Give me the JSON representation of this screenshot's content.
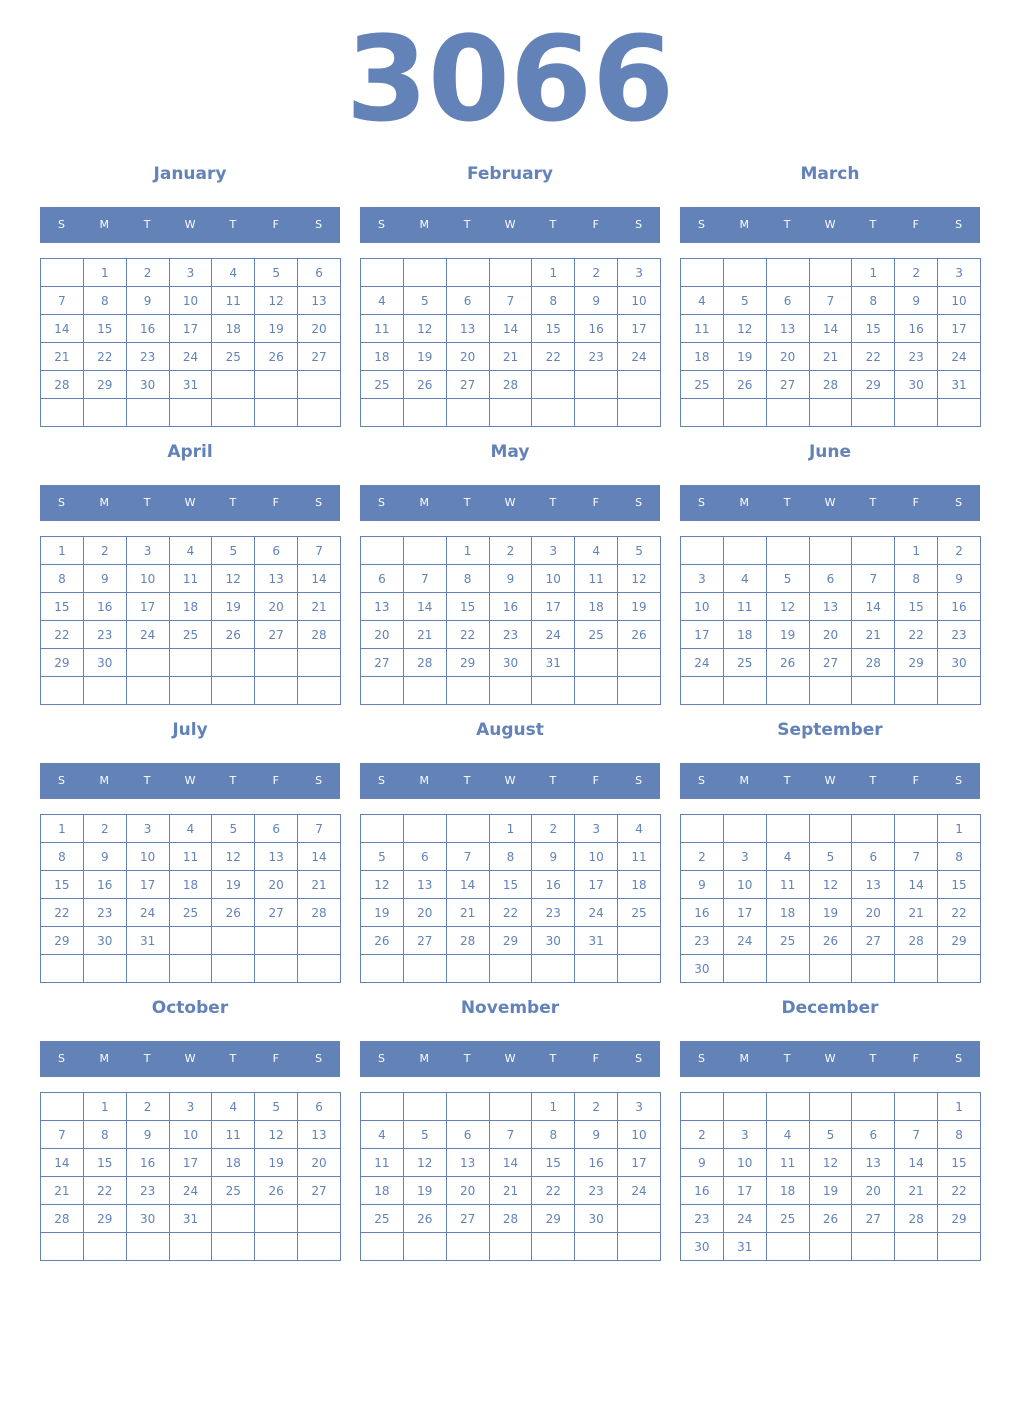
{
  "year": "3066",
  "accent_color": "#6282b8",
  "weekdays": [
    "S",
    "M",
    "T",
    "W",
    "T",
    "F",
    "S"
  ],
  "months": [
    {
      "name": "January",
      "weeks": [
        [
          "",
          "1",
          "2",
          "3",
          "4",
          "5",
          "6"
        ],
        [
          "7",
          "8",
          "9",
          "10",
          "11",
          "12",
          "13"
        ],
        [
          "14",
          "15",
          "16",
          "17",
          "18",
          "19",
          "20"
        ],
        [
          "21",
          "22",
          "23",
          "24",
          "25",
          "26",
          "27"
        ],
        [
          "28",
          "29",
          "30",
          "31",
          "",
          "",
          ""
        ],
        [
          "",
          "",
          "",
          "",
          "",
          "",
          ""
        ]
      ]
    },
    {
      "name": "February",
      "weeks": [
        [
          "",
          "",
          "",
          "",
          "1",
          "2",
          "3"
        ],
        [
          "4",
          "5",
          "6",
          "7",
          "8",
          "9",
          "10"
        ],
        [
          "11",
          "12",
          "13",
          "14",
          "15",
          "16",
          "17"
        ],
        [
          "18",
          "19",
          "20",
          "21",
          "22",
          "23",
          "24"
        ],
        [
          "25",
          "26",
          "27",
          "28",
          "",
          "",
          ""
        ],
        [
          "",
          "",
          "",
          "",
          "",
          "",
          ""
        ]
      ]
    },
    {
      "name": "March",
      "weeks": [
        [
          "",
          "",
          "",
          "",
          "1",
          "2",
          "3"
        ],
        [
          "4",
          "5",
          "6",
          "7",
          "8",
          "9",
          "10"
        ],
        [
          "11",
          "12",
          "13",
          "14",
          "15",
          "16",
          "17"
        ],
        [
          "18",
          "19",
          "20",
          "21",
          "22",
          "23",
          "24"
        ],
        [
          "25",
          "26",
          "27",
          "28",
          "29",
          "30",
          "31"
        ],
        [
          "",
          "",
          "",
          "",
          "",
          "",
          ""
        ]
      ]
    },
    {
      "name": "April",
      "weeks": [
        [
          "1",
          "2",
          "3",
          "4",
          "5",
          "6",
          "7"
        ],
        [
          "8",
          "9",
          "10",
          "11",
          "12",
          "13",
          "14"
        ],
        [
          "15",
          "16",
          "17",
          "18",
          "19",
          "20",
          "21"
        ],
        [
          "22",
          "23",
          "24",
          "25",
          "26",
          "27",
          "28"
        ],
        [
          "29",
          "30",
          "",
          "",
          "",
          "",
          ""
        ],
        [
          "",
          "",
          "",
          "",
          "",
          "",
          ""
        ]
      ]
    },
    {
      "name": "May",
      "weeks": [
        [
          "",
          "",
          "1",
          "2",
          "3",
          "4",
          "5"
        ],
        [
          "6",
          "7",
          "8",
          "9",
          "10",
          "11",
          "12"
        ],
        [
          "13",
          "14",
          "15",
          "16",
          "17",
          "18",
          "19"
        ],
        [
          "20",
          "21",
          "22",
          "23",
          "24",
          "25",
          "26"
        ],
        [
          "27",
          "28",
          "29",
          "30",
          "31",
          "",
          ""
        ],
        [
          "",
          "",
          "",
          "",
          "",
          "",
          ""
        ]
      ]
    },
    {
      "name": "June",
      "weeks": [
        [
          "",
          "",
          "",
          "",
          "",
          "1",
          "2"
        ],
        [
          "3",
          "4",
          "5",
          "6",
          "7",
          "8",
          "9"
        ],
        [
          "10",
          "11",
          "12",
          "13",
          "14",
          "15",
          "16"
        ],
        [
          "17",
          "18",
          "19",
          "20",
          "21",
          "22",
          "23"
        ],
        [
          "24",
          "25",
          "26",
          "27",
          "28",
          "29",
          "30"
        ],
        [
          "",
          "",
          "",
          "",
          "",
          "",
          ""
        ]
      ]
    },
    {
      "name": "July",
      "weeks": [
        [
          "1",
          "2",
          "3",
          "4",
          "5",
          "6",
          "7"
        ],
        [
          "8",
          "9",
          "10",
          "11",
          "12",
          "13",
          "14"
        ],
        [
          "15",
          "16",
          "17",
          "18",
          "19",
          "20",
          "21"
        ],
        [
          "22",
          "23",
          "24",
          "25",
          "26",
          "27",
          "28"
        ],
        [
          "29",
          "30",
          "31",
          "",
          "",
          "",
          ""
        ],
        [
          "",
          "",
          "",
          "",
          "",
          "",
          ""
        ]
      ]
    },
    {
      "name": "August",
      "weeks": [
        [
          "",
          "",
          "",
          "1",
          "2",
          "3",
          "4"
        ],
        [
          "5",
          "6",
          "7",
          "8",
          "9",
          "10",
          "11"
        ],
        [
          "12",
          "13",
          "14",
          "15",
          "16",
          "17",
          "18"
        ],
        [
          "19",
          "20",
          "21",
          "22",
          "23",
          "24",
          "25"
        ],
        [
          "26",
          "27",
          "28",
          "29",
          "30",
          "31",
          ""
        ],
        [
          "",
          "",
          "",
          "",
          "",
          "",
          ""
        ]
      ]
    },
    {
      "name": "September",
      "weeks": [
        [
          "",
          "",
          "",
          "",
          "",
          "",
          "1"
        ],
        [
          "2",
          "3",
          "4",
          "5",
          "6",
          "7",
          "8"
        ],
        [
          "9",
          "10",
          "11",
          "12",
          "13",
          "14",
          "15"
        ],
        [
          "16",
          "17",
          "18",
          "19",
          "20",
          "21",
          "22"
        ],
        [
          "23",
          "24",
          "25",
          "26",
          "27",
          "28",
          "29"
        ],
        [
          "30",
          "",
          "",
          "",
          "",
          "",
          ""
        ]
      ]
    },
    {
      "name": "October",
      "weeks": [
        [
          "",
          "1",
          "2",
          "3",
          "4",
          "5",
          "6"
        ],
        [
          "7",
          "8",
          "9",
          "10",
          "11",
          "12",
          "13"
        ],
        [
          "14",
          "15",
          "16",
          "17",
          "18",
          "19",
          "20"
        ],
        [
          "21",
          "22",
          "23",
          "24",
          "25",
          "26",
          "27"
        ],
        [
          "28",
          "29",
          "30",
          "31",
          "",
          "",
          ""
        ],
        [
          "",
          "",
          "",
          "",
          "",
          "",
          ""
        ]
      ]
    },
    {
      "name": "November",
      "weeks": [
        [
          "",
          "",
          "",
          "",
          "1",
          "2",
          "3"
        ],
        [
          "4",
          "5",
          "6",
          "7",
          "8",
          "9",
          "10"
        ],
        [
          "11",
          "12",
          "13",
          "14",
          "15",
          "16",
          "17"
        ],
        [
          "18",
          "19",
          "20",
          "21",
          "22",
          "23",
          "24"
        ],
        [
          "25",
          "26",
          "27",
          "28",
          "29",
          "30",
          ""
        ],
        [
          "",
          "",
          "",
          "",
          "",
          "",
          ""
        ]
      ]
    },
    {
      "name": "December",
      "weeks": [
        [
          "",
          "",
          "",
          "",
          "",
          "",
          "1"
        ],
        [
          "2",
          "3",
          "4",
          "5",
          "6",
          "7",
          "8"
        ],
        [
          "9",
          "10",
          "11",
          "12",
          "13",
          "14",
          "15"
        ],
        [
          "16",
          "17",
          "18",
          "19",
          "20",
          "21",
          "22"
        ],
        [
          "23",
          "24",
          "25",
          "26",
          "27",
          "28",
          "29"
        ],
        [
          "30",
          "31",
          "",
          "",
          "",
          "",
          ""
        ]
      ]
    }
  ]
}
